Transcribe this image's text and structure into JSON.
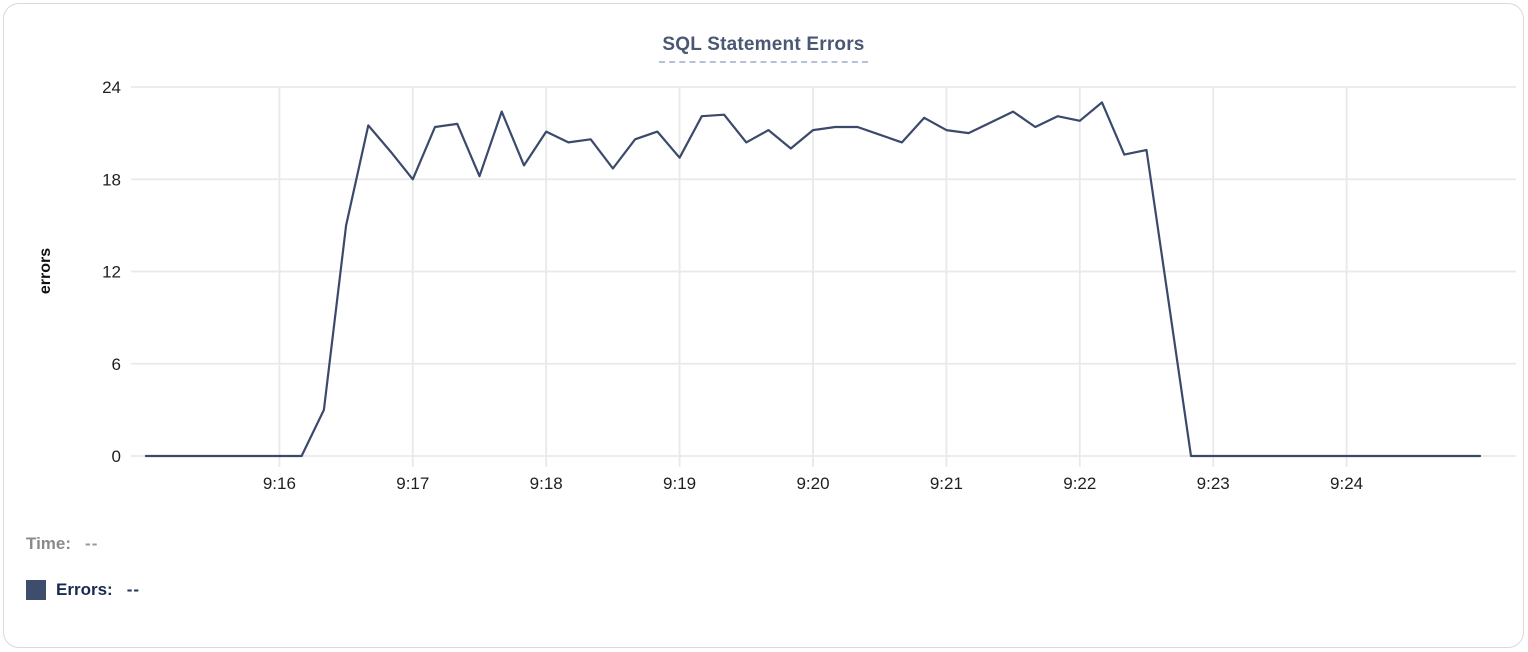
{
  "card": {
    "title": "SQL Statement Errors"
  },
  "legend": {
    "time_label": "Time:",
    "time_value": "--",
    "errors_label": "Errors:",
    "errors_value": "--",
    "swatch_color": "#3e4d6b"
  },
  "colors": {
    "line": "#3b4a6b",
    "grid": "#e9e9e9",
    "tick_text": "#1f1f1f",
    "axis_label": "#111111",
    "title": "#4a5873",
    "title_underline": "#b7c1d6",
    "card_border": "#d9d9d9"
  },
  "chart_data": {
    "type": "line",
    "title": "SQL Statement Errors",
    "xlabel": "",
    "ylabel": "errors",
    "ylim": [
      0,
      24
    ],
    "y_ticks": [
      0,
      6,
      12,
      18,
      24
    ],
    "x_ticks": [
      "9:16",
      "9:17",
      "9:18",
      "9:19",
      "9:20",
      "9:21",
      "9:22",
      "9:23",
      "9:24"
    ],
    "x_range": [
      "9:15:00",
      "9:25:00"
    ],
    "grid": true,
    "legend_position": "bottom-left",
    "series": [
      {
        "name": "Errors",
        "color": "#3b4a6b",
        "times": [
          "9:15:00",
          "9:15:10",
          "9:15:20",
          "9:15:30",
          "9:15:40",
          "9:15:50",
          "9:16:00",
          "9:16:10",
          "9:16:20",
          "9:16:30",
          "9:16:40",
          "9:16:50",
          "9:17:00",
          "9:17:10",
          "9:17:20",
          "9:17:30",
          "9:17:40",
          "9:17:50",
          "9:18:00",
          "9:18:10",
          "9:18:20",
          "9:18:30",
          "9:18:40",
          "9:18:50",
          "9:19:00",
          "9:19:10",
          "9:19:20",
          "9:19:30",
          "9:19:40",
          "9:19:50",
          "9:20:00",
          "9:20:10",
          "9:20:20",
          "9:20:30",
          "9:20:40",
          "9:20:50",
          "9:21:00",
          "9:21:10",
          "9:21:20",
          "9:21:30",
          "9:21:40",
          "9:21:50",
          "9:22:00",
          "9:22:10",
          "9:22:20",
          "9:22:30",
          "9:22:40",
          "9:22:50",
          "9:23:00",
          "9:23:10",
          "9:23:20",
          "9:23:30",
          "9:23:40",
          "9:23:50",
          "9:24:00",
          "9:24:10",
          "9:24:20",
          "9:24:30",
          "9:24:40",
          "9:24:50",
          "9:25:00"
        ],
        "values": [
          0,
          0,
          0,
          0,
          0,
          0,
          0,
          0,
          3,
          15,
          21.5,
          19.8,
          18,
          21.4,
          21.6,
          18.2,
          22.4,
          18.9,
          21.1,
          20.4,
          20.6,
          18.7,
          20.6,
          21.1,
          19.4,
          22.1,
          22.2,
          20.4,
          21.2,
          20,
          21.2,
          21.4,
          21.4,
          20.9,
          20.4,
          22,
          21.2,
          21,
          21.7,
          22.4,
          21.4,
          22.1,
          21.8,
          23,
          19.6,
          19.9,
          10,
          0,
          0,
          0,
          0,
          0,
          0,
          0,
          0,
          0,
          0,
          0,
          0,
          0,
          0
        ]
      }
    ]
  }
}
